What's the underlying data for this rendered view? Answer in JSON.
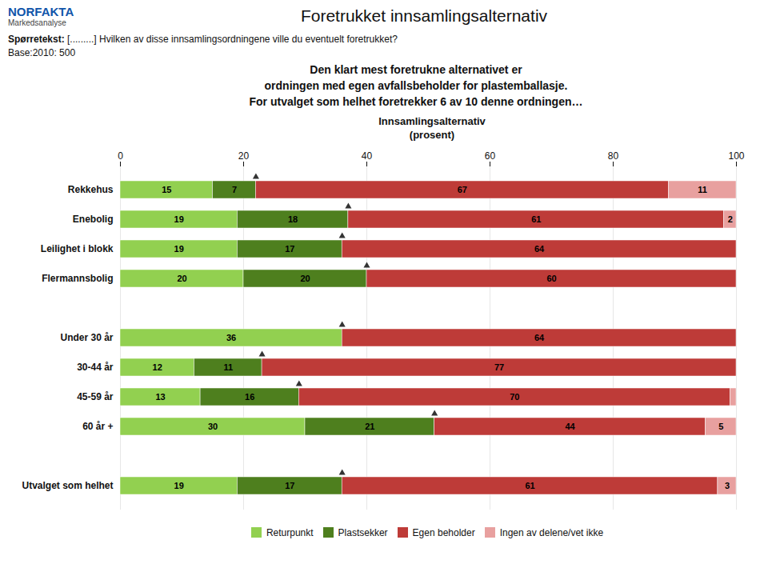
{
  "chart_data": {
    "type": "bar",
    "orientation": "horizontal",
    "stacked": true,
    "title": "Foretrukket innsamlingsalternativ",
    "subtitle": [
      "Den klart mest foretrukne alternativet er",
      "ordningen med egen avfallsbeholder for plastemballasje.",
      "For utvalget som helhet foretrekker 6 av 10 denne ordningen…"
    ],
    "annotations": [
      "NORFAKTA",
      "Markedsanalyse",
      "Spørretekst:",
      " [.........] Hvilken av disse innsamlingsordningene ville du eventuelt foretrukket?",
      "Base:2010: 500"
    ],
    "xlabel": "Innsamlingsalternativ\n(prosent)",
    "categories": [
      "Rekkehus",
      "Enebolig",
      "Leilighet i blokk",
      "Flermannsbolig",
      null,
      "Under 30 år",
      "30-44 år",
      "45-59 år",
      "60 år +",
      null,
      "Utvalget som helhet"
    ],
    "series": [
      {
        "name": "Returpunkt",
        "color": "#92d050",
        "values": [
          15,
          19,
          19,
          20,
          0,
          36,
          12,
          13,
          30,
          0,
          19
        ],
        "value_labels": [
          "15",
          "19",
          "19",
          "20",
          null,
          "36",
          "12",
          "13",
          "30",
          null,
          "19"
        ]
      },
      {
        "name": "Plastsekker",
        "color": "#4e7f1e",
        "values": [
          7,
          18,
          17,
          20,
          0,
          0,
          11,
          16,
          21,
          0,
          17
        ],
        "value_labels": [
          "7",
          "18",
          "17",
          "20",
          null,
          null,
          "11",
          "16",
          "21",
          null,
          "17"
        ]
      },
      {
        "name": "Egen beholder",
        "color": "#be3b38",
        "values": [
          67,
          61,
          64,
          60,
          0,
          64,
          77,
          70,
          44,
          0,
          61
        ],
        "value_labels": [
          "67",
          "61",
          "64",
          "60",
          null,
          "64",
          "77",
          "70",
          "44",
          null,
          "61"
        ]
      },
      {
        "name": "Ingen av delene/vet ikke",
        "color": "#e8a09f",
        "values": [
          11,
          2,
          0,
          0,
          0,
          0,
          0,
          1,
          5,
          0,
          3
        ],
        "value_labels": [
          "11",
          "2",
          null,
          null,
          null,
          null,
          null,
          null,
          "5",
          null,
          "3"
        ]
      }
    ],
    "xlim": [
      0,
      100
    ],
    "xticks": [
      0,
      20,
      40,
      60,
      80,
      100
    ],
    "grid": true,
    "data_labels": true,
    "legend": "bottom"
  }
}
